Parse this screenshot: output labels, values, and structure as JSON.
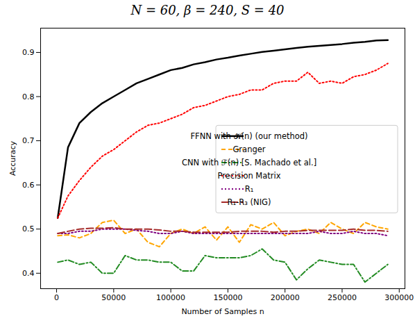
{
  "chart_data": {
    "type": "line",
    "title": "N = 60, β = 240, S = 40",
    "x_label": "Number of Samples n",
    "y_label": "Accuracy",
    "x": [
      1000,
      10000,
      20000,
      30000,
      40000,
      50000,
      60000,
      70000,
      80000,
      90000,
      100000,
      110000,
      120000,
      130000,
      140000,
      150000,
      160000,
      170000,
      180000,
      190000,
      200000,
      210000,
      220000,
      230000,
      240000,
      250000,
      260000,
      270000,
      280000,
      290000
    ],
    "series": [
      {
        "name": "FFNN with 𝒦(n) (our method)",
        "color": "#000000",
        "line_style": "solid",
        "values": [
          0.525,
          0.685,
          0.74,
          0.765,
          0.785,
          0.8,
          0.815,
          0.83,
          0.84,
          0.85,
          0.86,
          0.865,
          0.873,
          0.878,
          0.884,
          0.888,
          0.893,
          0.897,
          0.901,
          0.904,
          0.907,
          0.91,
          0.913,
          0.915,
          0.917,
          0.919,
          0.922,
          0.924,
          0.927,
          0.928
        ]
      },
      {
        "name": "Granger",
        "color": "#ffa500",
        "line_style": "dashed",
        "values": [
          0.485,
          0.487,
          0.48,
          0.49,
          0.515,
          0.52,
          0.49,
          0.5,
          0.47,
          0.46,
          0.49,
          0.5,
          0.49,
          0.505,
          0.475,
          0.505,
          0.47,
          0.51,
          0.5,
          0.515,
          0.485,
          0.495,
          0.5,
          0.49,
          0.515,
          0.5,
          0.49,
          0.515,
          0.505,
          0.5
        ]
      },
      {
        "name": "CNN with ℱ(n) [S. Machado et al.]",
        "color": "#228b22",
        "line_style": "dashdot",
        "values": [
          0.425,
          0.43,
          0.42,
          0.425,
          0.4,
          0.4,
          0.44,
          0.43,
          0.43,
          0.425,
          0.425,
          0.405,
          0.405,
          0.44,
          0.435,
          0.435,
          0.435,
          0.44,
          0.455,
          0.43,
          0.425,
          0.385,
          0.41,
          0.43,
          0.425,
          0.42,
          0.42,
          0.38,
          0.4,
          0.42
        ]
      },
      {
        "name": "Precision Matrix",
        "color": "#ff0000",
        "line_style": "dotted",
        "values": [
          0.525,
          0.575,
          0.61,
          0.64,
          0.665,
          0.68,
          0.7,
          0.72,
          0.735,
          0.74,
          0.75,
          0.76,
          0.775,
          0.78,
          0.79,
          0.8,
          0.805,
          0.815,
          0.815,
          0.83,
          0.835,
          0.835,
          0.855,
          0.83,
          0.835,
          0.83,
          0.845,
          0.85,
          0.86,
          0.875
        ]
      },
      {
        "name": "R₁",
        "color": "#800080",
        "line_style": "dotted",
        "values": [
          0.49,
          0.49,
          0.495,
          0.495,
          0.5,
          0.5,
          0.5,
          0.497,
          0.495,
          0.49,
          0.49,
          0.495,
          0.49,
          0.49,
          0.49,
          0.49,
          0.49,
          0.49,
          0.49,
          0.49,
          0.49,
          0.49,
          0.49,
          0.495,
          0.49,
          0.49,
          0.495,
          0.49,
          0.49,
          0.485
        ]
      },
      {
        "name": "R₁-R₃ (NIG)",
        "color": "#a52a2a",
        "line_style": "longdashed",
        "values": [
          0.49,
          0.495,
          0.5,
          0.502,
          0.502,
          0.503,
          0.5,
          0.5,
          0.5,
          0.498,
          0.495,
          0.495,
          0.493,
          0.493,
          0.493,
          0.493,
          0.495,
          0.495,
          0.495,
          0.493,
          0.495,
          0.495,
          0.497,
          0.497,
          0.497,
          0.497,
          0.5,
          0.497,
          0.497,
          0.495
        ]
      }
    ],
    "xlim": [
      -14000,
      305000
    ],
    "xticks": [
      0,
      50000,
      100000,
      150000,
      200000,
      250000,
      300000
    ],
    "ylim": [
      0.365,
      0.955
    ],
    "yticks": [
      0.4,
      0.5,
      0.6,
      0.7,
      0.8,
      0.9
    ],
    "grid": false,
    "legend": "center right"
  }
}
